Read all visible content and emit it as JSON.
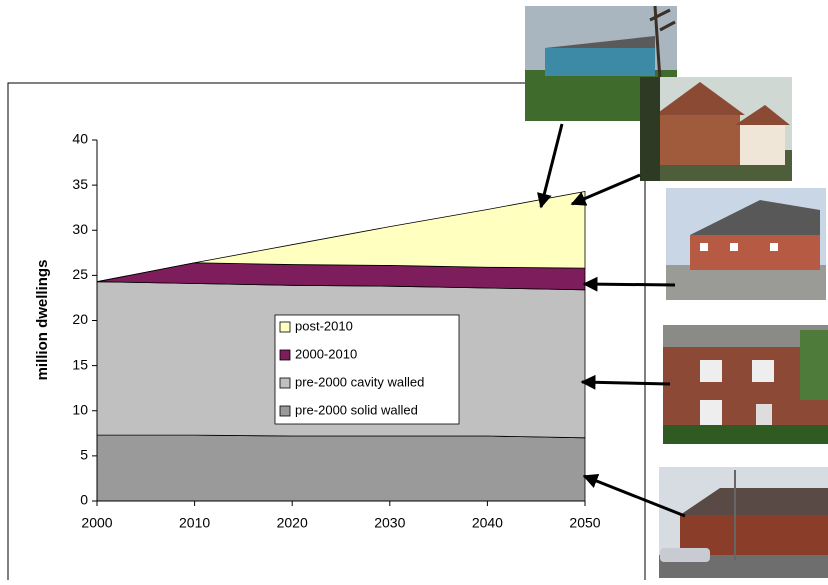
{
  "chart_data": {
    "type": "stacked-area",
    "y_label": "million dwellings",
    "x": [
      2000,
      2010,
      2020,
      2030,
      2040,
      2050
    ],
    "series": [
      {
        "name": "pre-2000 solid walled",
        "color": "#9a9a9a",
        "values": [
          7.3,
          7.3,
          7.2,
          7.2,
          7.2,
          7.0
        ]
      },
      {
        "name": "pre-2000 cavity walled",
        "color": "#c0c0c0",
        "values": [
          17.0,
          16.8,
          16.7,
          16.6,
          16.4,
          16.4
        ]
      },
      {
        "name": "2000-2010",
        "color": "#7d1d5c",
        "values": [
          0,
          2.3,
          2.3,
          2.3,
          2.3,
          2.4
        ]
      },
      {
        "name": "post-2010",
        "color": "#ffffc0",
        "values": [
          0,
          0,
          2.2,
          4.3,
          6.4,
          8.5
        ]
      }
    ],
    "xlim": [
      2000,
      2050
    ],
    "xticks": [
      2000,
      2010,
      2020,
      2030,
      2040,
      2050
    ],
    "ylim": [
      0,
      40
    ],
    "yticks": [
      0,
      5,
      10,
      15,
      20,
      25,
      30,
      35,
      40
    ]
  }
}
